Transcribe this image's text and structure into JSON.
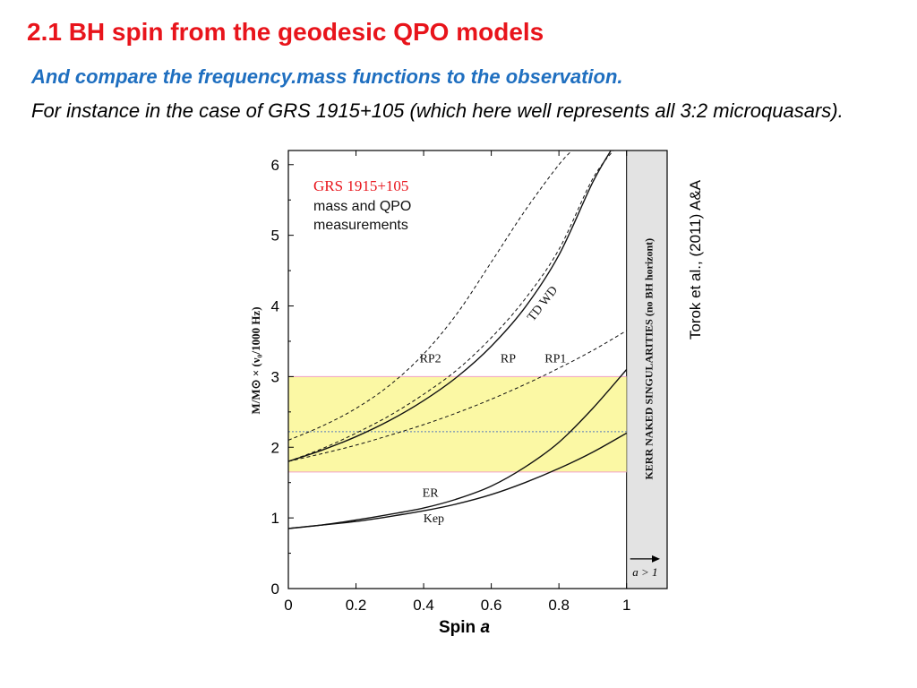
{
  "slide": {
    "title": "2.1  BH spin from the geodesic QPO models",
    "subtitle": "And compare the frequency.mass  functions to the observation.",
    "body": "For instance in the case of GRS 1915+105 (which here well represents all 3:2 microquasars).",
    "citation": "Torok et al., (2011) A&A",
    "xlabel_prefix": "Spin ",
    "xlabel_symbol": "a"
  },
  "chart_data": {
    "type": "line",
    "title": "GRS 1915+105",
    "subtitle": "mass and QPO measurements",
    "ylabel": "M/M⊙ × (ν₀/1000 Hz)",
    "xlim": [
      0,
      1.12
    ],
    "ylim": [
      0,
      6.2
    ],
    "x_ticks": [
      "0",
      "0.2",
      "0.4",
      "0.6",
      "0.8",
      "1"
    ],
    "y_ticks": [
      "0",
      "1",
      "2",
      "3",
      "4",
      "5",
      "6"
    ],
    "band": {
      "y_min": 1.65,
      "y_max": 3.0,
      "center": 2.22,
      "color": "#fbf8a4"
    },
    "shaded_region": {
      "x_min": 1.0,
      "x_max": 1.12,
      "label": "KERR NAKED SINGULARITIES (no BH horizont)",
      "arrow_label": "a > 1",
      "color": "#e3e3e3"
    },
    "series": [
      {
        "name": "RP2",
        "style": "dashed",
        "x": [
          0,
          0.1,
          0.2,
          0.3,
          0.4,
          0.5,
          0.6,
          0.7,
          0.8,
          0.85
        ],
        "y": [
          2.1,
          2.3,
          2.55,
          2.88,
          3.32,
          3.9,
          4.62,
          5.35,
          6.0,
          6.25
        ]
      },
      {
        "name": "TD WD",
        "style": "dashed",
        "x": [
          0,
          0.1,
          0.2,
          0.3,
          0.4,
          0.5,
          0.6,
          0.7,
          0.8,
          0.9,
          0.97
        ],
        "y": [
          1.8,
          1.98,
          2.2,
          2.45,
          2.75,
          3.1,
          3.55,
          4.1,
          4.8,
          5.8,
          6.25
        ]
      },
      {
        "name": "RP",
        "style": "solid",
        "x": [
          0,
          0.1,
          0.2,
          0.3,
          0.4,
          0.5,
          0.6,
          0.7,
          0.8,
          0.9,
          0.96
        ],
        "y": [
          1.8,
          1.96,
          2.15,
          2.38,
          2.66,
          3.0,
          3.43,
          3.98,
          4.72,
          5.75,
          6.25
        ]
      },
      {
        "name": "RP1",
        "style": "dashed",
        "x": [
          0,
          0.1,
          0.2,
          0.3,
          0.4,
          0.5,
          0.6,
          0.7,
          0.8,
          0.9,
          1.0
        ],
        "y": [
          1.8,
          1.91,
          2.03,
          2.17,
          2.32,
          2.49,
          2.68,
          2.89,
          3.12,
          3.37,
          3.65
        ]
      },
      {
        "name": "ER",
        "style": "solid",
        "x": [
          0,
          0.1,
          0.2,
          0.3,
          0.4,
          0.5,
          0.6,
          0.7,
          0.8,
          0.9,
          1.0
        ],
        "y": [
          0.85,
          0.9,
          0.97,
          1.05,
          1.14,
          1.27,
          1.45,
          1.72,
          2.07,
          2.55,
          3.1
        ]
      },
      {
        "name": "Kep",
        "style": "solid",
        "x": [
          0,
          0.1,
          0.2,
          0.3,
          0.4,
          0.5,
          0.6,
          0.7,
          0.8,
          0.9,
          1.0
        ],
        "y": [
          0.85,
          0.9,
          0.95,
          1.02,
          1.1,
          1.2,
          1.33,
          1.5,
          1.7,
          1.93,
          2.2
        ]
      }
    ],
    "curve_labels": [
      {
        "text": "RP2",
        "x": 0.42,
        "y": 3.2
      },
      {
        "text": "RP",
        "x": 0.65,
        "y": 3.2
      },
      {
        "text": "RP1",
        "x": 0.79,
        "y": 3.2
      },
      {
        "text": "TD WD",
        "x": 0.76,
        "y": 4.0
      },
      {
        "text": "ER",
        "x": 0.42,
        "y": 1.3
      },
      {
        "text": "Kep",
        "x": 0.43,
        "y": 0.94
      }
    ],
    "colors": {
      "title": "#e8141b",
      "curves": "#111111",
      "band_edge": "#f0a0c8",
      "center_line": "#5577bb"
    }
  }
}
